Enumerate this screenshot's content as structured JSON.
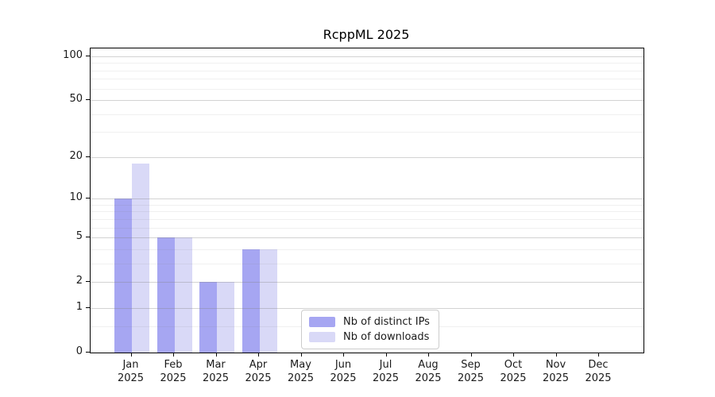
{
  "chart_data": {
    "type": "bar",
    "title": "RcppML 2025",
    "categories": [
      "Jan 2025",
      "Feb 2025",
      "Mar 2025",
      "Apr 2025",
      "May 2025",
      "Jun 2025",
      "Jul 2025",
      "Aug 2025",
      "Sep 2025",
      "Oct 2025",
      "Nov 2025",
      "Dec 2025"
    ],
    "series": [
      {
        "name": "Nb of distinct IPs",
        "color": "#a6a6f2",
        "values": [
          10,
          5,
          2,
          4,
          0,
          0,
          0,
          0,
          0,
          0,
          0,
          0
        ]
      },
      {
        "name": "Nb of downloads",
        "color": "#d9d9f7",
        "values": [
          18,
          5,
          2,
          4,
          0,
          0,
          0,
          0,
          0,
          0,
          0,
          0
        ]
      }
    ],
    "xlabel": "",
    "ylabel": "",
    "yscale": "log1p",
    "y_ticks": [
      0,
      1,
      2,
      5,
      10,
      20,
      50,
      100
    ],
    "y_minor_ticks": [
      0.5,
      3,
      4,
      6,
      7,
      8,
      9,
      30,
      40,
      60,
      70,
      80,
      90
    ],
    "ylim": [
      0,
      113
    ],
    "grid": "horizontal",
    "legend_position": "bottom-center-inside",
    "colors": {
      "axis": "#000000",
      "grid_major": "rgba(128,128,128,0.35)",
      "grid_minor": "rgba(128,128,128,0.12)",
      "text": "#1a1a1a",
      "background": "#ffffff"
    }
  }
}
